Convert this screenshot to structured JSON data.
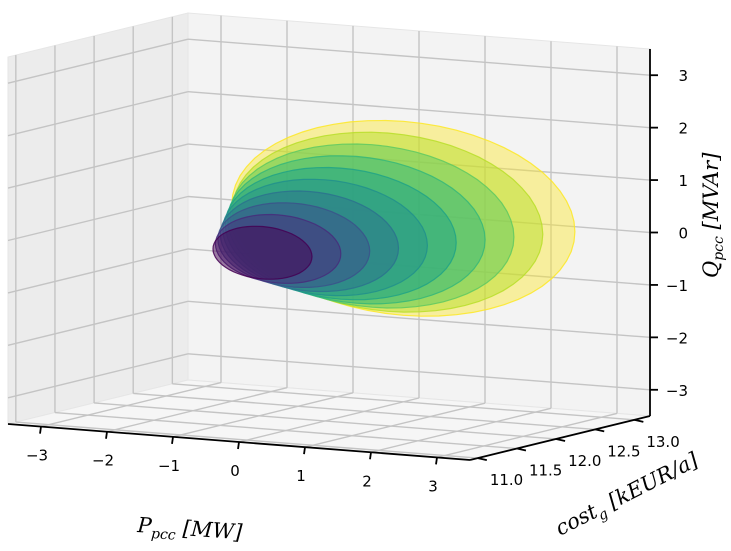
{
  "chart_data": {
    "type": "scatter",
    "style": "3d-surfaces",
    "grid": true,
    "colormap": "viridis",
    "x_axis": {
      "label_var": "P",
      "label_sub": "pcc",
      "label_unit": " [MW]",
      "ticks": [
        -3,
        -2,
        -1,
        0,
        1,
        2,
        3
      ],
      "tick_labels": [
        "−3",
        "−2",
        "−1",
        "0",
        "1",
        "2",
        "3"
      ],
      "range": [
        -3.5,
        3.5
      ]
    },
    "y_axis": {
      "label_var": "cost",
      "label_sub": "g",
      "label_unit": " [kEUR/a]",
      "ticks": [
        11.0,
        11.5,
        12.0,
        12.5,
        13.0
      ],
      "tick_labels": [
        "11.0",
        "11.5",
        "12.0",
        "12.5",
        "13.0"
      ],
      "range": [
        10.9,
        13.2
      ]
    },
    "z_axis": {
      "label_var": "Q",
      "label_sub": "pcc",
      "label_unit": " [MVAr]",
      "ticks": [
        -3,
        -2,
        -1,
        0,
        1,
        2,
        3
      ],
      "tick_labels": [
        "−3",
        "−2",
        "−1",
        "0",
        "1",
        "2",
        "3"
      ],
      "range": [
        -3.5,
        3.5
      ]
    },
    "surfaces": [
      {
        "cost": 13.0,
        "p_half": 2.6,
        "q_half": 1.85,
        "color": "#fde725"
      },
      {
        "cost": 12.8,
        "p_half": 2.35,
        "q_half": 1.7,
        "color": "#b8de29"
      },
      {
        "cost": 12.6,
        "p_half": 2.15,
        "q_half": 1.55,
        "color": "#5ec962"
      },
      {
        "cost": 12.4,
        "p_half": 1.95,
        "q_half": 1.4,
        "color": "#35b779"
      },
      {
        "cost": 12.2,
        "p_half": 1.75,
        "q_half": 1.25,
        "color": "#20a386"
      },
      {
        "cost": 12.0,
        "p_half": 1.55,
        "q_half": 1.1,
        "color": "#21918c"
      },
      {
        "cost": 11.8,
        "p_half": 1.35,
        "q_half": 0.95,
        "color": "#2c728e"
      },
      {
        "cost": 11.6,
        "p_half": 1.15,
        "q_half": 0.8,
        "color": "#3b528b"
      },
      {
        "cost": 11.4,
        "p_half": 0.95,
        "q_half": 0.65,
        "color": "#472d7b"
      },
      {
        "cost": 11.2,
        "p_half": 0.75,
        "q_half": 0.5,
        "color": "#440154"
      }
    ]
  }
}
